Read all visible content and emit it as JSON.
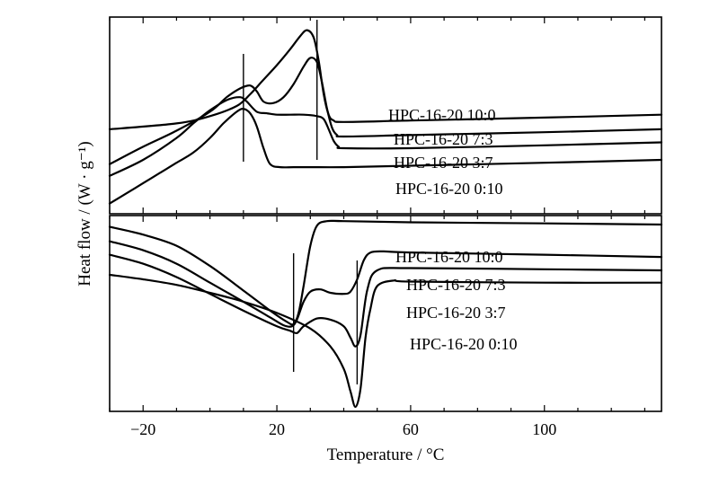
{
  "chart_data": {
    "type": "line",
    "xlabel": "Temperature / °C",
    "ylabel": "Heat flow / (W · g⁻¹)",
    "xlim": [
      -30,
      135
    ],
    "x_ticks": [
      -20,
      20,
      60,
      100
    ],
    "x_tick_labels": [
      "−20",
      "20",
      "60",
      "100"
    ],
    "panels": [
      {
        "name": "upper",
        "vertical_markers": [
          10,
          32
        ],
        "series": [
          {
            "name": "HPC-16-20 10:0",
            "x": [
              -30,
              -10,
              0,
              8,
              12,
              16,
              20,
              24,
              27,
              29,
              31,
              32.5,
              34,
              35.5,
              37,
              40,
              60,
              100,
              135
            ],
            "y": [
              0.38,
              0.42,
              0.47,
              0.54,
              0.62,
              0.72,
              0.82,
              0.93,
              1.02,
              1.06,
              1.01,
              0.85,
              0.62,
              0.48,
              0.44,
              0.43,
              0.44,
              0.46,
              0.48
            ]
          },
          {
            "name": "HPC-16-20 7:3",
            "x": [
              -30,
              -20,
              -10,
              0,
              5,
              9,
              12,
              14,
              16,
              19,
              22,
              25,
              28,
              30,
              32,
              33.5,
              35,
              36.5,
              38,
              40,
              60,
              100,
              135
            ],
            "y": [
              0.14,
              0.26,
              0.37,
              0.5,
              0.6,
              0.66,
              0.68,
              0.64,
              0.57,
              0.56,
              0.6,
              0.69,
              0.81,
              0.87,
              0.84,
              0.7,
              0.52,
              0.39,
              0.34,
              0.33,
              0.34,
              0.36,
              0.38
            ]
          },
          {
            "name": "HPC-16-20 3:7",
            "x": [
              -30,
              -20,
              -10,
              -5,
              0,
              5,
              9,
              11,
              14,
              17,
              20,
              24,
              28,
              32,
              34,
              35.5,
              37,
              38.5,
              40,
              60,
              100,
              135
            ],
            "y": [
              0.06,
              0.17,
              0.32,
              0.42,
              0.51,
              0.58,
              0.6,
              0.57,
              0.5,
              0.49,
              0.48,
              0.48,
              0.48,
              0.47,
              0.45,
              0.38,
              0.3,
              0.26,
              0.25,
              0.25,
              0.27,
              0.29
            ]
          },
          {
            "name": "HPC-16-20 0:10",
            "x": [
              -30,
              -25,
              -20,
              -15,
              -10,
              -5,
              0,
              4,
              8,
              10,
              12,
              14,
              16,
              18,
              21,
              25,
              30,
              40,
              60,
              100,
              135
            ],
            "y": [
              -0.13,
              -0.06,
              0.01,
              0.08,
              0.15,
              0.22,
              0.32,
              0.42,
              0.5,
              0.52,
              0.49,
              0.4,
              0.25,
              0.14,
              0.12,
              0.12,
              0.12,
              0.12,
              0.13,
              0.15,
              0.17
            ]
          }
        ]
      },
      {
        "name": "lower",
        "vertical_markers": [
          25,
          44
        ],
        "series": [
          {
            "name": "HPC-16-20 10:0",
            "x": [
              -30,
              -20,
              -10,
              0,
              10,
              18,
              23,
              25,
              26.5,
              28,
              30,
              32,
              35,
              40,
              60,
              100,
              135
            ],
            "y": [
              0.95,
              0.88,
              0.78,
              0.6,
              0.38,
              0.2,
              0.1,
              0.08,
              0.18,
              0.42,
              0.78,
              0.96,
              1.0,
              1.0,
              0.99,
              0.98,
              0.97
            ]
          },
          {
            "name": "HPC-16-20 7:3",
            "x": [
              -30,
              -20,
              -10,
              0,
              10,
              18,
              22,
              24.5,
              26,
              28,
              30,
              33,
              36,
              40,
              42,
              44,
              46,
              48,
              52,
              60,
              100,
              135
            ],
            "y": [
              0.82,
              0.74,
              0.62,
              0.45,
              0.28,
              0.14,
              0.07,
              0.06,
              0.12,
              0.28,
              0.37,
              0.39,
              0.36,
              0.35,
              0.37,
              0.48,
              0.65,
              0.72,
              0.73,
              0.72,
              0.7,
              0.68
            ]
          },
          {
            "name": "HPC-16-20 3:7",
            "x": [
              -30,
              -20,
              -10,
              0,
              10,
              20,
              24,
              26,
              28,
              32,
              36,
              40,
              42,
              43.5,
              45,
              47,
              50,
              60,
              100,
              135
            ],
            "y": [
              0.7,
              0.62,
              0.5,
              0.35,
              0.2,
              0.06,
              0.02,
              0.0,
              0.06,
              0.13,
              0.12,
              0.06,
              -0.04,
              -0.12,
              -0.02,
              0.38,
              0.56,
              0.58,
              0.57,
              0.56
            ]
          },
          {
            "name": "HPC-16-20 0:10",
            "x": [
              -30,
              -20,
              -10,
              0,
              10,
              20,
              30,
              36,
              40,
              42,
              43.5,
              45,
              46.5,
              48,
              50,
              55,
              60,
              100,
              135
            ],
            "y": [
              0.52,
              0.48,
              0.43,
              0.36,
              0.28,
              0.18,
              0.04,
              -0.12,
              -0.32,
              -0.52,
              -0.66,
              -0.5,
              -0.04,
              0.22,
              0.42,
              0.47,
              0.46,
              0.45,
              0.45
            ]
          }
        ]
      }
    ]
  },
  "labels": {
    "upper": [
      "HPC-16-20 10:0",
      "HPC-16-20 7:3",
      "HPC-16-20 3:7",
      "HPC-16-20 0:10"
    ],
    "lower": [
      "HPC-16-20 10:0",
      "HPC-16-20 7:3",
      "HPC-16-20 3:7",
      "HPC-16-20 0:10"
    ]
  }
}
